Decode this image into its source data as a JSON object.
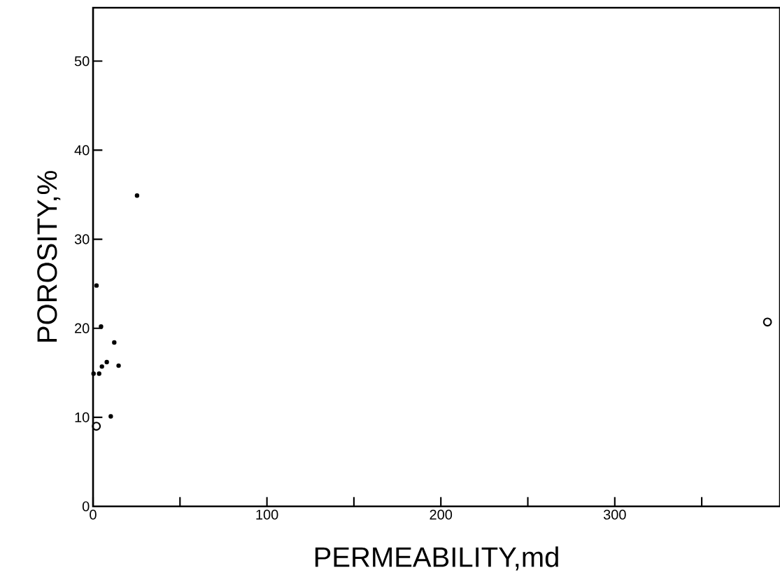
{
  "chart_data": {
    "type": "scatter",
    "xlabel": "PERMEABILITY,md",
    "ylabel": "POROSITY,%",
    "xlim": [
      0,
      395
    ],
    "ylim": [
      0,
      56
    ],
    "xticks": [
      0,
      {
        "value": 50,
        "label": null
      },
      100,
      {
        "value": 150,
        "label": null
      },
      200,
      {
        "value": 250,
        "label": null
      },
      300,
      {
        "value": 350,
        "label": null
      }
    ],
    "yticks": [
      0,
      10,
      20,
      30,
      40,
      50
    ],
    "grid": false,
    "marker": "circle",
    "series": [
      {
        "color": "#000000",
        "x": [
          2.0,
          4.6,
          12.2,
          7.9,
          5.1,
          14.7,
          0.3,
          3.5,
          10.2,
          25.3
        ],
        "values": [
          24.8,
          20.2,
          18.4,
          16.2,
          15.7,
          15.8,
          14.9,
          14.9,
          10.1,
          34.9
        ]
      },
      {
        "color": "#000000",
        "x": [
          1.9,
          387.8
        ],
        "values": [
          9.0,
          20.7
        ]
      }
    ]
  }
}
